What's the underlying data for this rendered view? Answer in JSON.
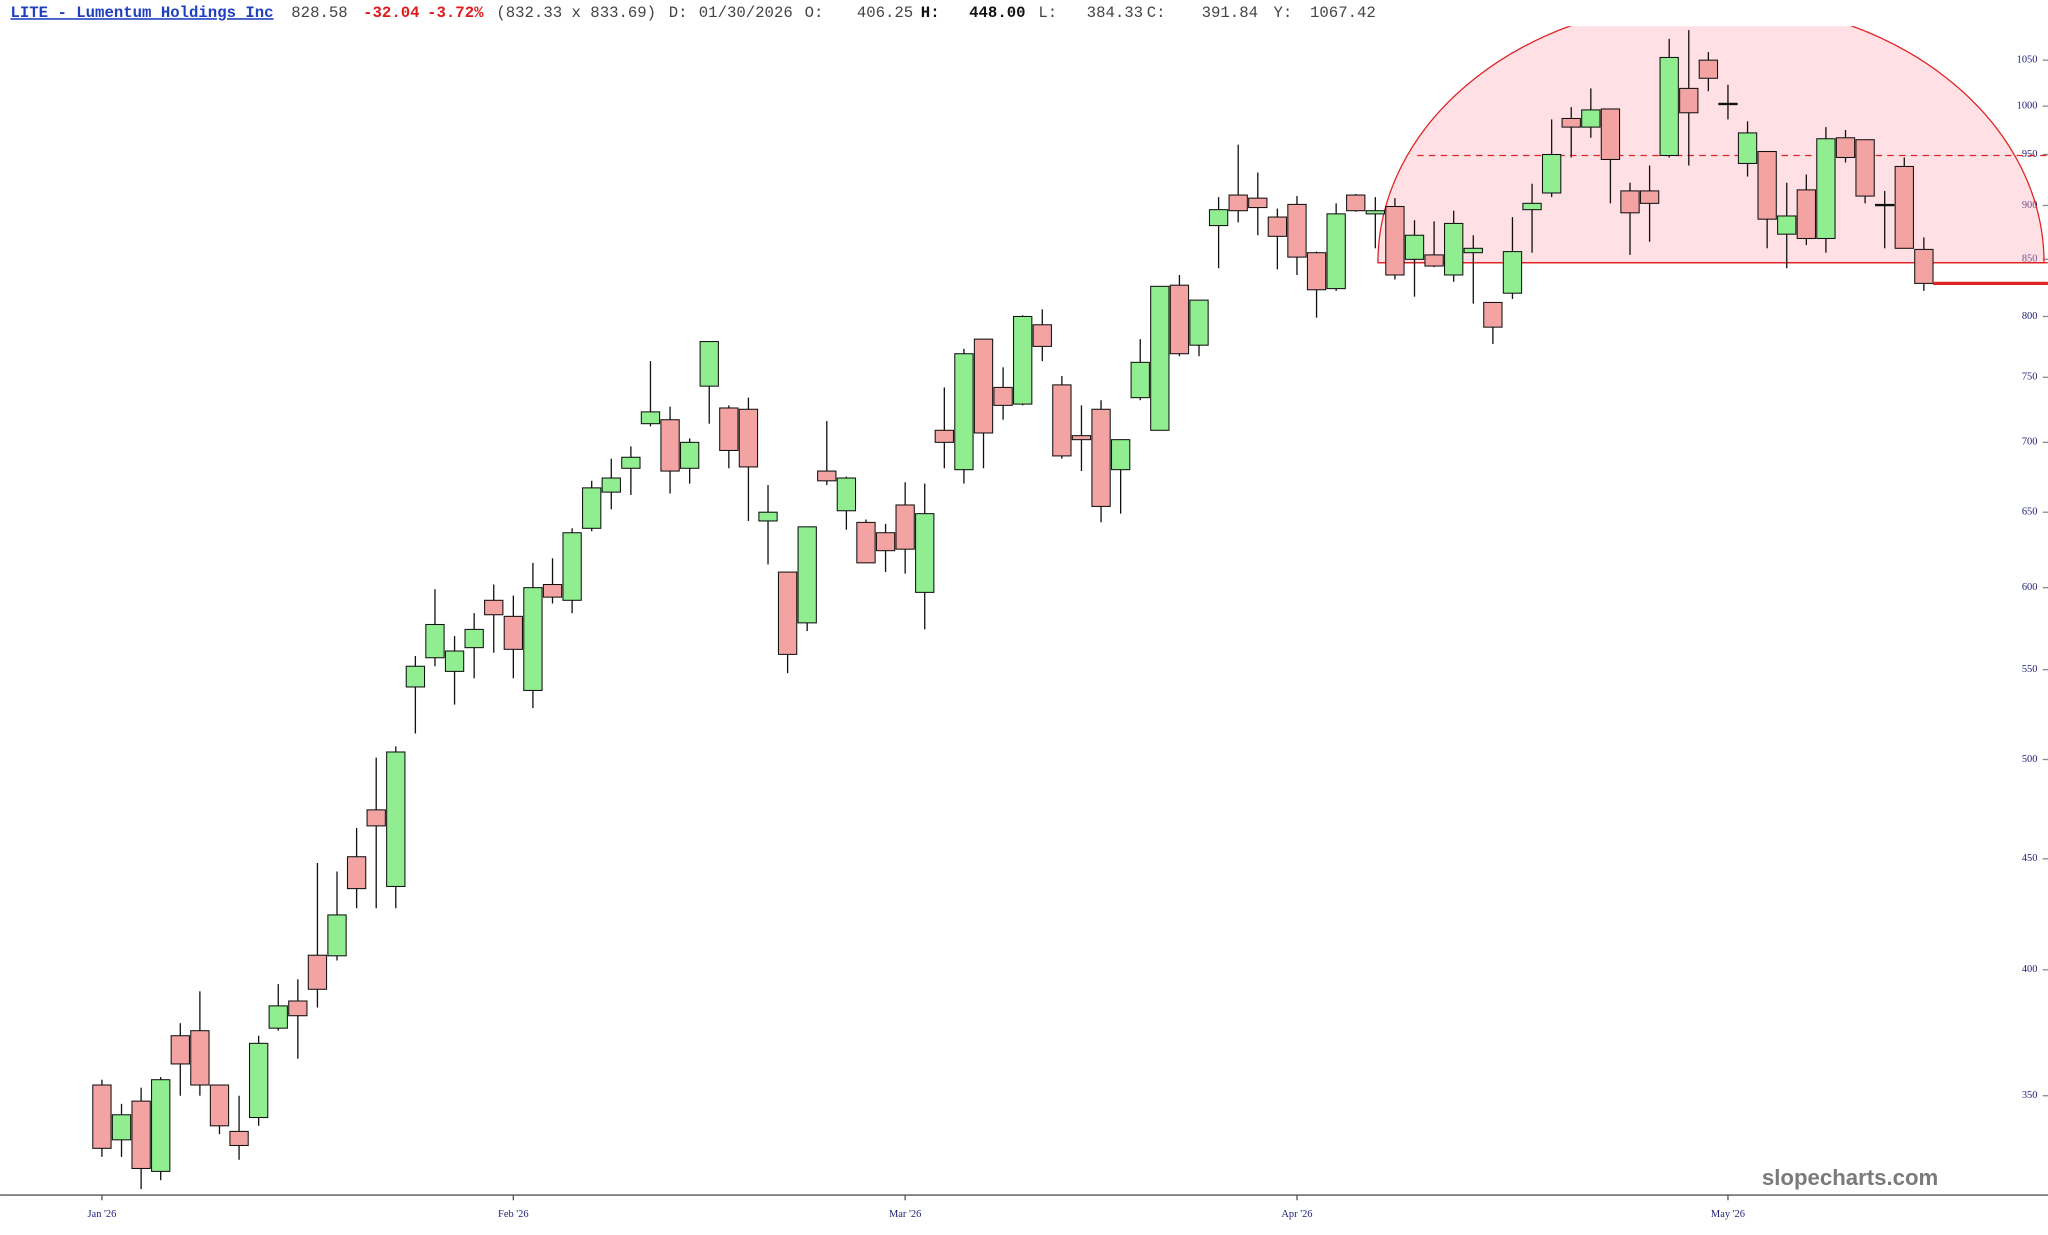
{
  "chart_data": {
    "type": "candlestick",
    "title": "LITE - Lumentum Holdings Inc",
    "last": 828.58,
    "change": -32.04,
    "change_pct": "-3.72%",
    "bid_ask": "(832.33 x 833.69)",
    "readout": [
      {
        "label": "D:",
        "value": "01/30/2026"
      },
      {
        "label": "O:",
        "value": "406.25"
      },
      {
        "label": "H:",
        "value": "448.00"
      },
      {
        "label": "L:",
        "value": "384.33"
      },
      {
        "label": "C:",
        "value": "391.84"
      },
      {
        "label": "Y:",
        "value": "1067.42"
      }
    ],
    "watermark": "slopecharts.com",
    "open": [
      354,
      334,
      348,
      323,
      373,
      375,
      354,
      337,
      342,
      376,
      387,
      406.25,
      406,
      451,
      474,
      437,
      540,
      557,
      549,
      563,
      592,
      582,
      538,
      602,
      592,
      639,
      664,
      681,
      714,
      717,
      681,
      743,
      726,
      725,
      644,
      610,
      578,
      679,
      651,
      643,
      636,
      655,
      597,
      709,
      680,
      781,
      742,
      729,
      793,
      744,
      705,
      725,
      680,
      734,
      709,
      827,
      776,
      881,
      910,
      907,
      889,
      901,
      856,
      824,
      910,
      892,
      899,
      850,
      854,
      836,
      856,
      812,
      820,
      896,
      912,
      987,
      978,
      997,
      914,
      914,
      949,
      1019,
      1050,
      1003,
      941,
      953,
      873,
      915,
      869,
      967,
      965,
      901,
      938,
      859
    ],
    "high": [
      356,
      347,
      353,
      357,
      378,
      391,
      354,
      350,
      373,
      394,
      396,
      448,
      444,
      465,
      501,
      507,
      558,
      599,
      570,
      584,
      602,
      595,
      616,
      619,
      639,
      672,
      688,
      697,
      763,
      727,
      703,
      779,
      728,
      734,
      669,
      610,
      640,
      716,
      675,
      645,
      642,
      671,
      670,
      742,
      773,
      781,
      758,
      801,
      806,
      751,
      728,
      732,
      702,
      781,
      826,
      836,
      814,
      908,
      960,
      932,
      897,
      909,
      857,
      902,
      911,
      908,
      907,
      886,
      885,
      895,
      872,
      812,
      889,
      921,
      986,
      999,
      1019,
      997,
      922,
      939,
      1074,
      1084,
      1059,
      1023,
      984,
      953,
      922,
      930,
      978,
      975,
      965,
      914,
      947,
      870
    ],
    "low": [
      328,
      328,
      317,
      320,
      350,
      350,
      336,
      327,
      339,
      375,
      364,
      384.33,
      404,
      427,
      427,
      427,
      514,
      552,
      530,
      545,
      560,
      545,
      528,
      590,
      584,
      637,
      652,
      662,
      712,
      663,
      670,
      714,
      681,
      644,
      615,
      548,
      573,
      669,
      638,
      616,
      610,
      609,
      574,
      681,
      670,
      681,
      717,
      728,
      763,
      688,
      679,
      643,
      649,
      732,
      709,
      767,
      767,
      842,
      884,
      872,
      841,
      836,
      799,
      822,
      894,
      860,
      832,
      817,
      843,
      830,
      811,
      777,
      815,
      856,
      908,
      947,
      967,
      902,
      854,
      866,
      947,
      939,
      1016,
      986,
      928,
      860,
      842,
      863,
      856,
      942,
      902,
      860,
      860,
      822
    ],
    "close": [
      331,
      343,
      324,
      356,
      362,
      354,
      339,
      332,
      370,
      385,
      381,
      391.84,
      424,
      436,
      466,
      504,
      552,
      577,
      561,
      574,
      583,
      562,
      600,
      594,
      636,
      667,
      674,
      689,
      723,
      679,
      700,
      779,
      694,
      682,
      650,
      559,
      640,
      672,
      674,
      616,
      624,
      625,
      649,
      700,
      769,
      707,
      728,
      800,
      775,
      690,
      702,
      654,
      702,
      762,
      826,
      769,
      814,
      896,
      895,
      898,
      871,
      852,
      823,
      892,
      895,
      895,
      836,
      872,
      844,
      883,
      860,
      791,
      857,
      902,
      950,
      978,
      996,
      945,
      893,
      902,
      1053,
      993,
      1030,
      1003,
      972,
      887,
      890,
      869,
      966,
      947,
      909,
      901,
      860,
      828.58
    ],
    "up_color": "#90ee90",
    "down_color": "#f4a3a3",
    "log_scale": true,
    "ylim": [
      315,
      1088.6
    ],
    "yticks": [
      350,
      400,
      450,
      500,
      550,
      600,
      650,
      700,
      750,
      800,
      850,
      900,
      950,
      1000,
      1050
    ],
    "xticks": [
      {
        "value": 0,
        "label": "Jan '26"
      },
      {
        "value": 21,
        "label": "Feb '26"
      },
      {
        "value": 41,
        "label": "Mar '26"
      },
      {
        "value": 61,
        "label": "Apr '26"
      },
      {
        "value": 83,
        "label": "May '26"
      }
    ],
    "support_level": 847,
    "dashed_level": 949,
    "drawing_color": "#e02424"
  }
}
